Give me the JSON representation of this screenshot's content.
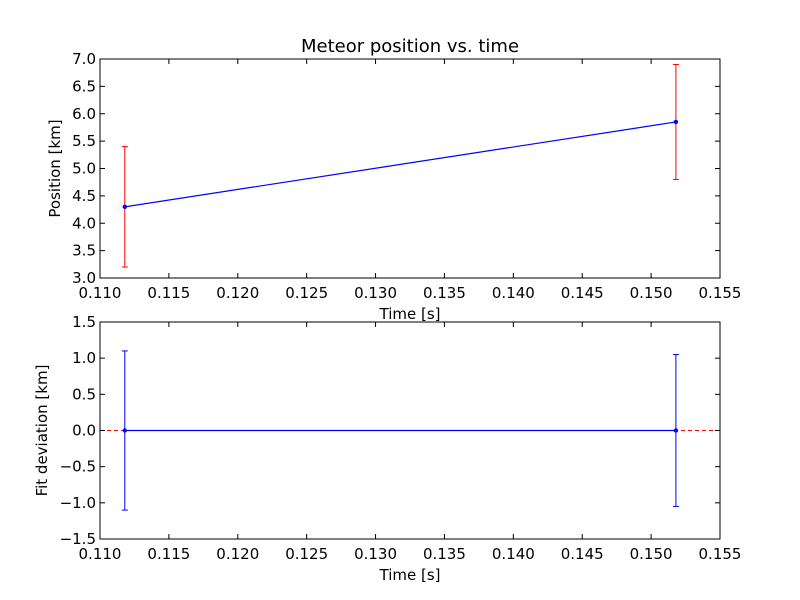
{
  "chart_data": [
    {
      "type": "line",
      "title": "Meteor position vs. time",
      "xlabel": "Time [s]",
      "ylabel": "Position [km]",
      "xlim": [
        0.11,
        0.155
      ],
      "ylim": [
        3.0,
        7.0
      ],
      "x_ticks": [
        "0.110",
        "0.115",
        "0.120",
        "0.125",
        "0.130",
        "0.135",
        "0.140",
        "0.145",
        "0.150",
        "0.155"
      ],
      "y_ticks": [
        "3.0",
        "3.5",
        "4.0",
        "4.5",
        "5.0",
        "5.5",
        "6.0",
        "6.5",
        "7.0"
      ],
      "grid": false,
      "series": [
        {
          "x": [
            0.1118,
            0.1518
          ],
          "y": [
            4.3,
            5.85
          ],
          "yerr": [
            1.1,
            1.05
          ],
          "line_color": "#0000ff",
          "marker_color": "#0000ff",
          "errorbar_color": "#ff0000"
        }
      ]
    },
    {
      "type": "line",
      "title": "",
      "xlabel": "Time [s]",
      "ylabel": "Fit deviation [km]",
      "xlim": [
        0.11,
        0.155
      ],
      "ylim": [
        -1.5,
        1.5
      ],
      "x_ticks": [
        "0.110",
        "0.115",
        "0.120",
        "0.125",
        "0.130",
        "0.135",
        "0.140",
        "0.145",
        "0.150",
        "0.155"
      ],
      "y_ticks": [
        "−1.5",
        "−1.0",
        "−0.5",
        "0.0",
        "0.5",
        "1.0",
        "1.5"
      ],
      "grid": false,
      "reference_line": {
        "y": 0.0,
        "color": "#ff0000",
        "style": "dashed"
      },
      "series": [
        {
          "x": [
            0.1118,
            0.1518
          ],
          "y": [
            0.0,
            0.0
          ],
          "yerr": [
            1.1,
            1.05
          ],
          "line_color": "#0000ff",
          "marker_color": "#0000ff",
          "errorbar_color": "#0000ff"
        }
      ]
    }
  ]
}
